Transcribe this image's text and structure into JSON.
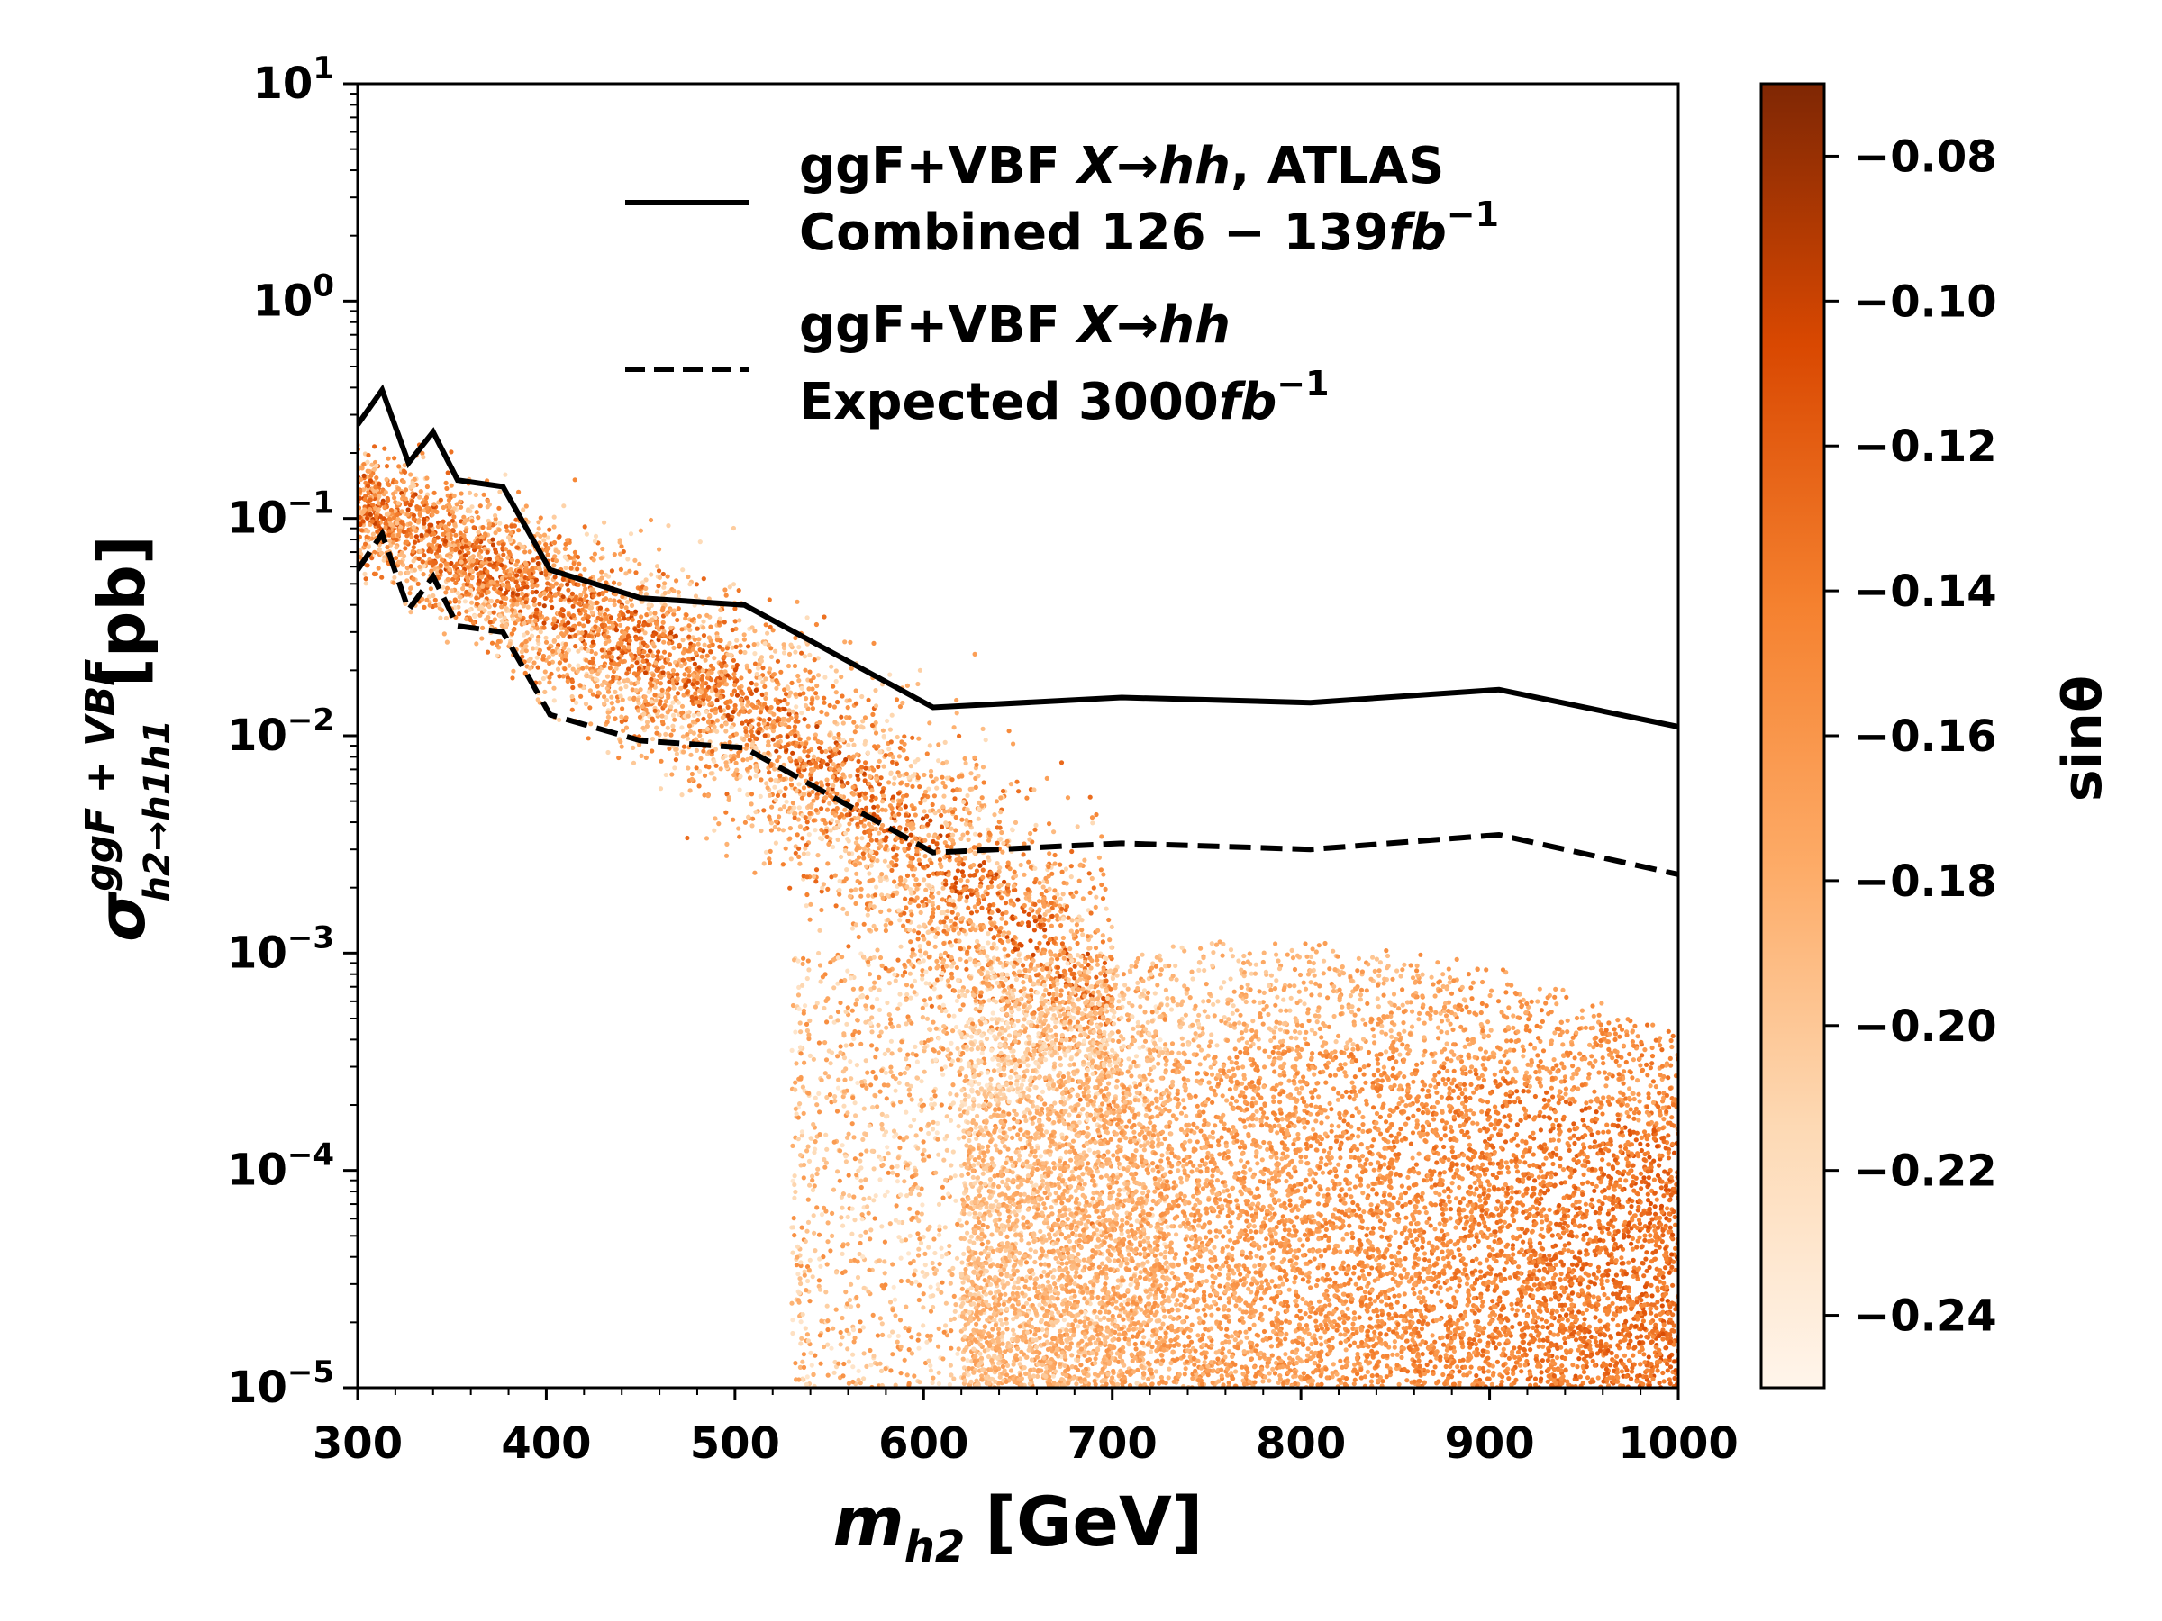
{
  "chart_data": {
    "type": "scatter",
    "xlabel": "m",
    "xlabel_sub": "h2",
    "xlabel_unit": "[GeV]",
    "ylabel": "σ",
    "ylabel_sup": "ggF + VBF",
    "ylabel_sub": "h2→h1h1",
    "ylabel_unit": "[pb]",
    "xlim": [
      300,
      1000
    ],
    "ylim": [
      1e-05,
      10
    ],
    "yscale": "log",
    "x_ticks": [
      "300",
      "400",
      "500",
      "600",
      "700",
      "800",
      "900",
      "1000"
    ],
    "y_ticks": [
      {
        "base": "10",
        "exp": "1"
      },
      {
        "base": "10",
        "exp": "0"
      },
      {
        "base": "10",
        "exp": "−1"
      },
      {
        "base": "10",
        "exp": "−2"
      },
      {
        "base": "10",
        "exp": "−3"
      },
      {
        "base": "10",
        "exp": "−4"
      },
      {
        "base": "10",
        "exp": "−5"
      }
    ],
    "colorbar": {
      "label": "sinθ",
      "range": [
        -0.25,
        -0.07
      ],
      "ticks": [
        "−0.08",
        "−0.10",
        "−0.12",
        "−0.14",
        "−0.16",
        "−0.18",
        "−0.20",
        "−0.22",
        "−0.24"
      ],
      "tick_values": [
        -0.08,
        -0.1,
        -0.12,
        -0.14,
        -0.16,
        -0.18,
        -0.2,
        -0.22,
        -0.24
      ],
      "colormap": "Oranges"
    },
    "series": [
      {
        "name": "observed",
        "style": "solid",
        "x": [
          300,
          313,
          327,
          340,
          353,
          377,
          402,
          450,
          505,
          605,
          705,
          805,
          905,
          1000
        ],
        "y": [
          0.27,
          0.39,
          0.18,
          0.25,
          0.15,
          0.14,
          0.058,
          0.043,
          0.04,
          0.0135,
          0.015,
          0.0142,
          0.0163,
          0.011
        ]
      },
      {
        "name": "expected",
        "style": "dashed",
        "x": [
          300,
          313,
          327,
          340,
          353,
          377,
          402,
          450,
          505,
          605,
          705,
          805,
          905,
          1000
        ],
        "y": [
          0.058,
          0.085,
          0.038,
          0.054,
          0.032,
          0.03,
          0.0125,
          0.0095,
          0.0088,
          0.0029,
          0.0032,
          0.003,
          0.0035,
          0.0023
        ]
      }
    ],
    "scatter_description": "approximately 9000 parameter points; sin-theta mapped to colour",
    "legend": {
      "position": "top-right",
      "entries": [
        {
          "series": "observed",
          "line1_pre": "ggF+VBF ",
          "line1_italic": "X→hh",
          "line1_post": ", ATLAS",
          "line2_pre": "Combined 126 − 139",
          "line2_italic": "fb",
          "line2_sup": "−1"
        },
        {
          "series": "expected",
          "line1_pre": "ggF+VBF ",
          "line1_italic": "X→hh",
          "line1_post": "",
          "line2_pre": "Expected 3000",
          "line2_italic": "fb",
          "line2_sup": "−1"
        }
      ]
    }
  }
}
